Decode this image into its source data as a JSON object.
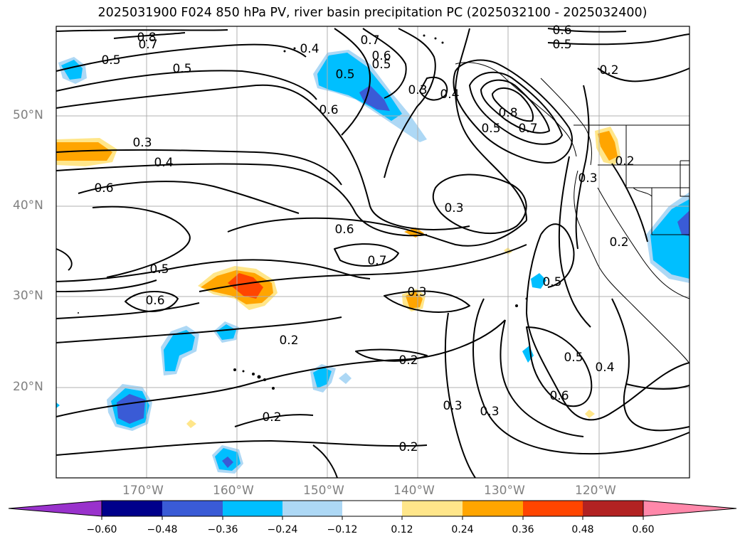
{
  "title": "2025031900 F024 850 hPa PV, river basin precipitation PC (2025032100 - 2025032400)",
  "map": {
    "lon_range": [
      "180W",
      "110W"
    ],
    "lat_range": [
      "10N",
      "60N"
    ],
    "gridlines": true,
    "lat_labels": [
      "50°N",
      "40°N",
      "30°N",
      "20°N"
    ],
    "lon_labels": [
      "170°W",
      "160°W",
      "150°W",
      "140°W",
      "130°W",
      "120°W"
    ],
    "contour_labels": [
      "0.8",
      "0.7",
      "0.4",
      "0.7",
      "0.6",
      "0.5",
      "0.6",
      "0.5",
      "0.5",
      "0.5",
      "0.5",
      "0.3",
      "0.4",
      "0.6",
      "0.8",
      "0.5",
      "0.7",
      "0.2",
      "0.3",
      "0.4",
      "0.6",
      "0.3",
      "0.2",
      "0.3",
      "0.6",
      "0.2",
      "0.5",
      "0.7",
      "0.6",
      "0.3",
      "0.5",
      "0.2",
      "0.2",
      "0.5",
      "0.4",
      "0.6",
      "0.3",
      "0.3",
      "0.2",
      "0.2"
    ]
  },
  "colorbar": {
    "ticks": [
      "−0.60",
      "−0.48",
      "−0.36",
      "−0.24",
      "−0.12",
      "0.12",
      "0.24",
      "0.36",
      "0.48",
      "0.60"
    ],
    "colors": [
      "#9932cc",
      "#00008b",
      "#3a5bd6",
      "#00bfff",
      "#add8f5",
      "#ffffff",
      "#ffe68a",
      "#ffa500",
      "#ff4500",
      "#b22222",
      "#ff88aa"
    ]
  }
}
